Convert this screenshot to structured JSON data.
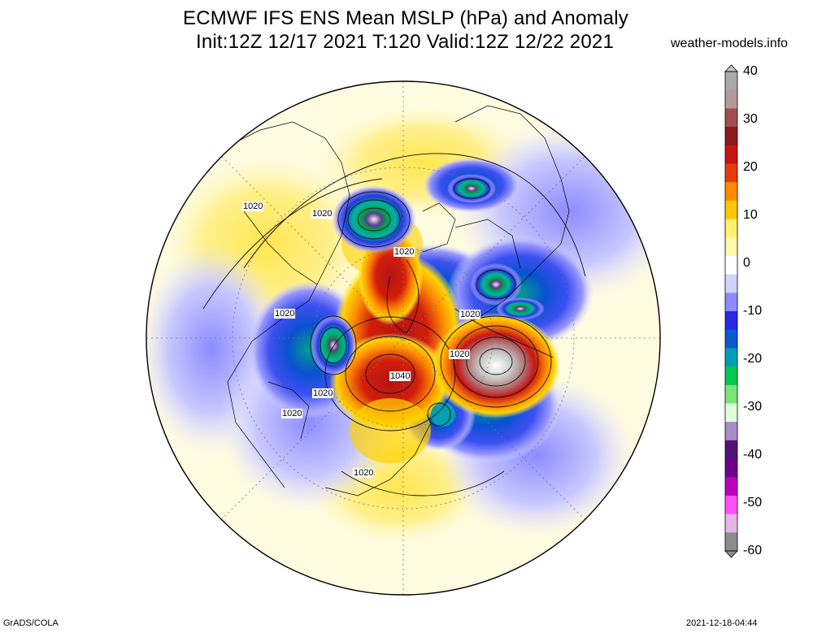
{
  "title": {
    "line1": "ECMWF IFS ENS Mean MSLP (hPa) and Anomaly",
    "line2": "Init:12Z 12/17 2021  T:120 Valid:12Z 12/22 2021"
  },
  "source": "weather-models.info",
  "footer": {
    "software": "GrADS/COLA",
    "timestamp": "2021-12-18-04:44"
  },
  "colorbar": {
    "ticks": [
      "40",
      "30",
      "20",
      "10",
      "0",
      "-10",
      "-20",
      "-30",
      "-40",
      "-50",
      "-60"
    ],
    "colors": [
      "#a9a9a9",
      "#b49a9a",
      "#a05050",
      "#8b1a1a",
      "#c81414",
      "#e63c0a",
      "#ff8c00",
      "#ffc800",
      "#fff06e",
      "#fffaaa",
      "#ffffff",
      "#d2d2ff",
      "#8c8cff",
      "#2828e6",
      "#0a5ad2",
      "#00a0b4",
      "#00c850",
      "#78e678",
      "#dcffdc",
      "#aa8cc8",
      "#501478",
      "#6e008c",
      "#be00be",
      "#ff50ff",
      "#e6b4e6",
      "#8c8c8c"
    ]
  },
  "map": {
    "contour_labels": [
      "1020",
      "1020",
      "1020",
      "1020",
      "1020",
      "1020",
      "1020",
      "1040",
      "1020",
      "1020",
      "1020"
    ]
  }
}
